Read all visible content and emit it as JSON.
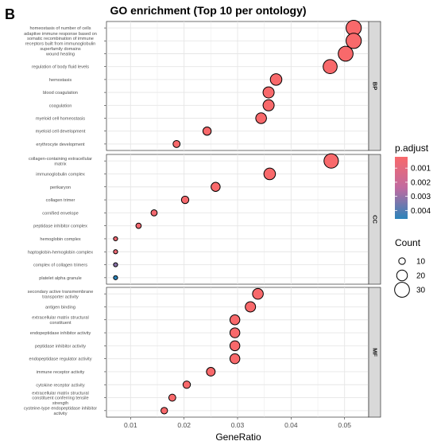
{
  "panel_label": "B",
  "chart_data": {
    "type": "scatter",
    "title": "GO enrichment (Top 10 per ontology)",
    "xlabel": "GeneRatio",
    "xlim": [
      0.0055,
      0.0545
    ],
    "xticks": [
      0.01,
      0.02,
      0.03,
      0.04,
      0.05
    ],
    "xtick_labels": [
      "0.01",
      "0.02",
      "0.03",
      "0.04",
      "0.05"
    ],
    "grid": true,
    "facets": [
      {
        "name": "BP",
        "terms": [
          {
            "label": "homeostasis of number of cells",
            "x": 0.0517,
            "count": 31,
            "p_adjust": 0.0002
          },
          {
            "label": "adaptive immune response based on somatic recombination of immune receptors built from immunoglobulin superfamily domains",
            "x": 0.0517,
            "count": 31,
            "p_adjust": 0.0002
          },
          {
            "label": "wound healing",
            "x": 0.0502,
            "count": 30,
            "p_adjust": 0.0002
          },
          {
            "label": "regulation of body fluid levels",
            "x": 0.0473,
            "count": 28,
            "p_adjust": 0.0002
          },
          {
            "label": "hemostasis",
            "x": 0.0372,
            "count": 22,
            "p_adjust": 0.0002
          },
          {
            "label": "blood coagulation",
            "x": 0.0358,
            "count": 21,
            "p_adjust": 0.0002
          },
          {
            "label": "coagulation",
            "x": 0.0358,
            "count": 21,
            "p_adjust": 0.0002
          },
          {
            "label": "myeloid cell homeostasis",
            "x": 0.0344,
            "count": 20,
            "p_adjust": 0.0002
          },
          {
            "label": "myeloid cell development",
            "x": 0.0243,
            "count": 14,
            "p_adjust": 0.0002
          },
          {
            "label": "erythrocyte development",
            "x": 0.0186,
            "count": 11,
            "p_adjust": 0.0002
          }
        ]
      },
      {
        "name": "CC",
        "terms": [
          {
            "label": "collagen-containing extracellular matrix",
            "x": 0.0475,
            "count": 29,
            "p_adjust": 0.0002
          },
          {
            "label": "immunoglobulin complex",
            "x": 0.036,
            "count": 22,
            "p_adjust": 0.0002
          },
          {
            "label": "perikaryon",
            "x": 0.0259,
            "count": 16,
            "p_adjust": 0.0002
          },
          {
            "label": "collagen trimer",
            "x": 0.0202,
            "count": 12,
            "p_adjust": 0.0003
          },
          {
            "label": "cornified envelope",
            "x": 0.0144,
            "count": 9,
            "p_adjust": 0.0004
          },
          {
            "label": "peptidase inhibitor complex",
            "x": 0.0115,
            "count": 7,
            "p_adjust": 0.0004
          },
          {
            "label": "hemoglobin complex",
            "x": 0.0072,
            "count": 4,
            "p_adjust": 0.0005
          },
          {
            "label": "haptoglobin-hemoglobin complex",
            "x": 0.0072,
            "count": 4,
            "p_adjust": 0.0006
          },
          {
            "label": "complex of collagen trimers",
            "x": 0.0072,
            "count": 4,
            "p_adjust": 0.0032
          },
          {
            "label": "platelet alpha granule",
            "x": 0.0072,
            "count": 4,
            "p_adjust": 0.0046
          }
        ]
      },
      {
        "name": "MF",
        "terms": [
          {
            "label": "secondary active transmembrane transporter activity",
            "x": 0.0338,
            "count": 20,
            "p_adjust": 0.0002
          },
          {
            "label": "antigen binding",
            "x": 0.0324,
            "count": 19,
            "p_adjust": 0.0002
          },
          {
            "label": "extracellular matrix structural constituent",
            "x": 0.0295,
            "count": 18,
            "p_adjust": 0.0002
          },
          {
            "label": "endopeptidase inhibitor activity",
            "x": 0.0295,
            "count": 18,
            "p_adjust": 0.0002
          },
          {
            "label": "peptidase inhibitor activity",
            "x": 0.0295,
            "count": 18,
            "p_adjust": 0.0002
          },
          {
            "label": "endopeptidase regulator activity",
            "x": 0.0295,
            "count": 18,
            "p_adjust": 0.0002
          },
          {
            "label": "immune receptor activity",
            "x": 0.025,
            "count": 15,
            "p_adjust": 0.0002
          },
          {
            "label": "cytokine receptor activity",
            "x": 0.0205,
            "count": 12,
            "p_adjust": 0.0002
          },
          {
            "label": "extracellular matrix structural constituent conferring tensile strength",
            "x": 0.0178,
            "count": 11,
            "p_adjust": 0.0002
          },
          {
            "label": "cysteine-type endopeptidase inhibitor activity",
            "x": 0.0163,
            "count": 10,
            "p_adjust": 0.0002
          }
        ]
      }
    ],
    "legend_color": {
      "title": "p.adjust",
      "ticks": [
        "0.001",
        "0.002",
        "0.003",
        "0.004"
      ],
      "tick_values": [
        0.001,
        0.002,
        0.003,
        0.004
      ],
      "range": [
        0.0002,
        0.0046
      ],
      "color_low_p": "#f8696b",
      "color_mid": "#c06aa0",
      "color_high_p": "#2b83ba"
    },
    "legend_size": {
      "title": "Count",
      "labels": [
        "10",
        "20",
        "30"
      ],
      "values": [
        10,
        20,
        30
      ]
    },
    "colors": {
      "panel_bg": "#ffffff",
      "grid": "#ebebeb",
      "strip_bg": "#d9d9d9",
      "point_stroke": "#000000"
    }
  }
}
